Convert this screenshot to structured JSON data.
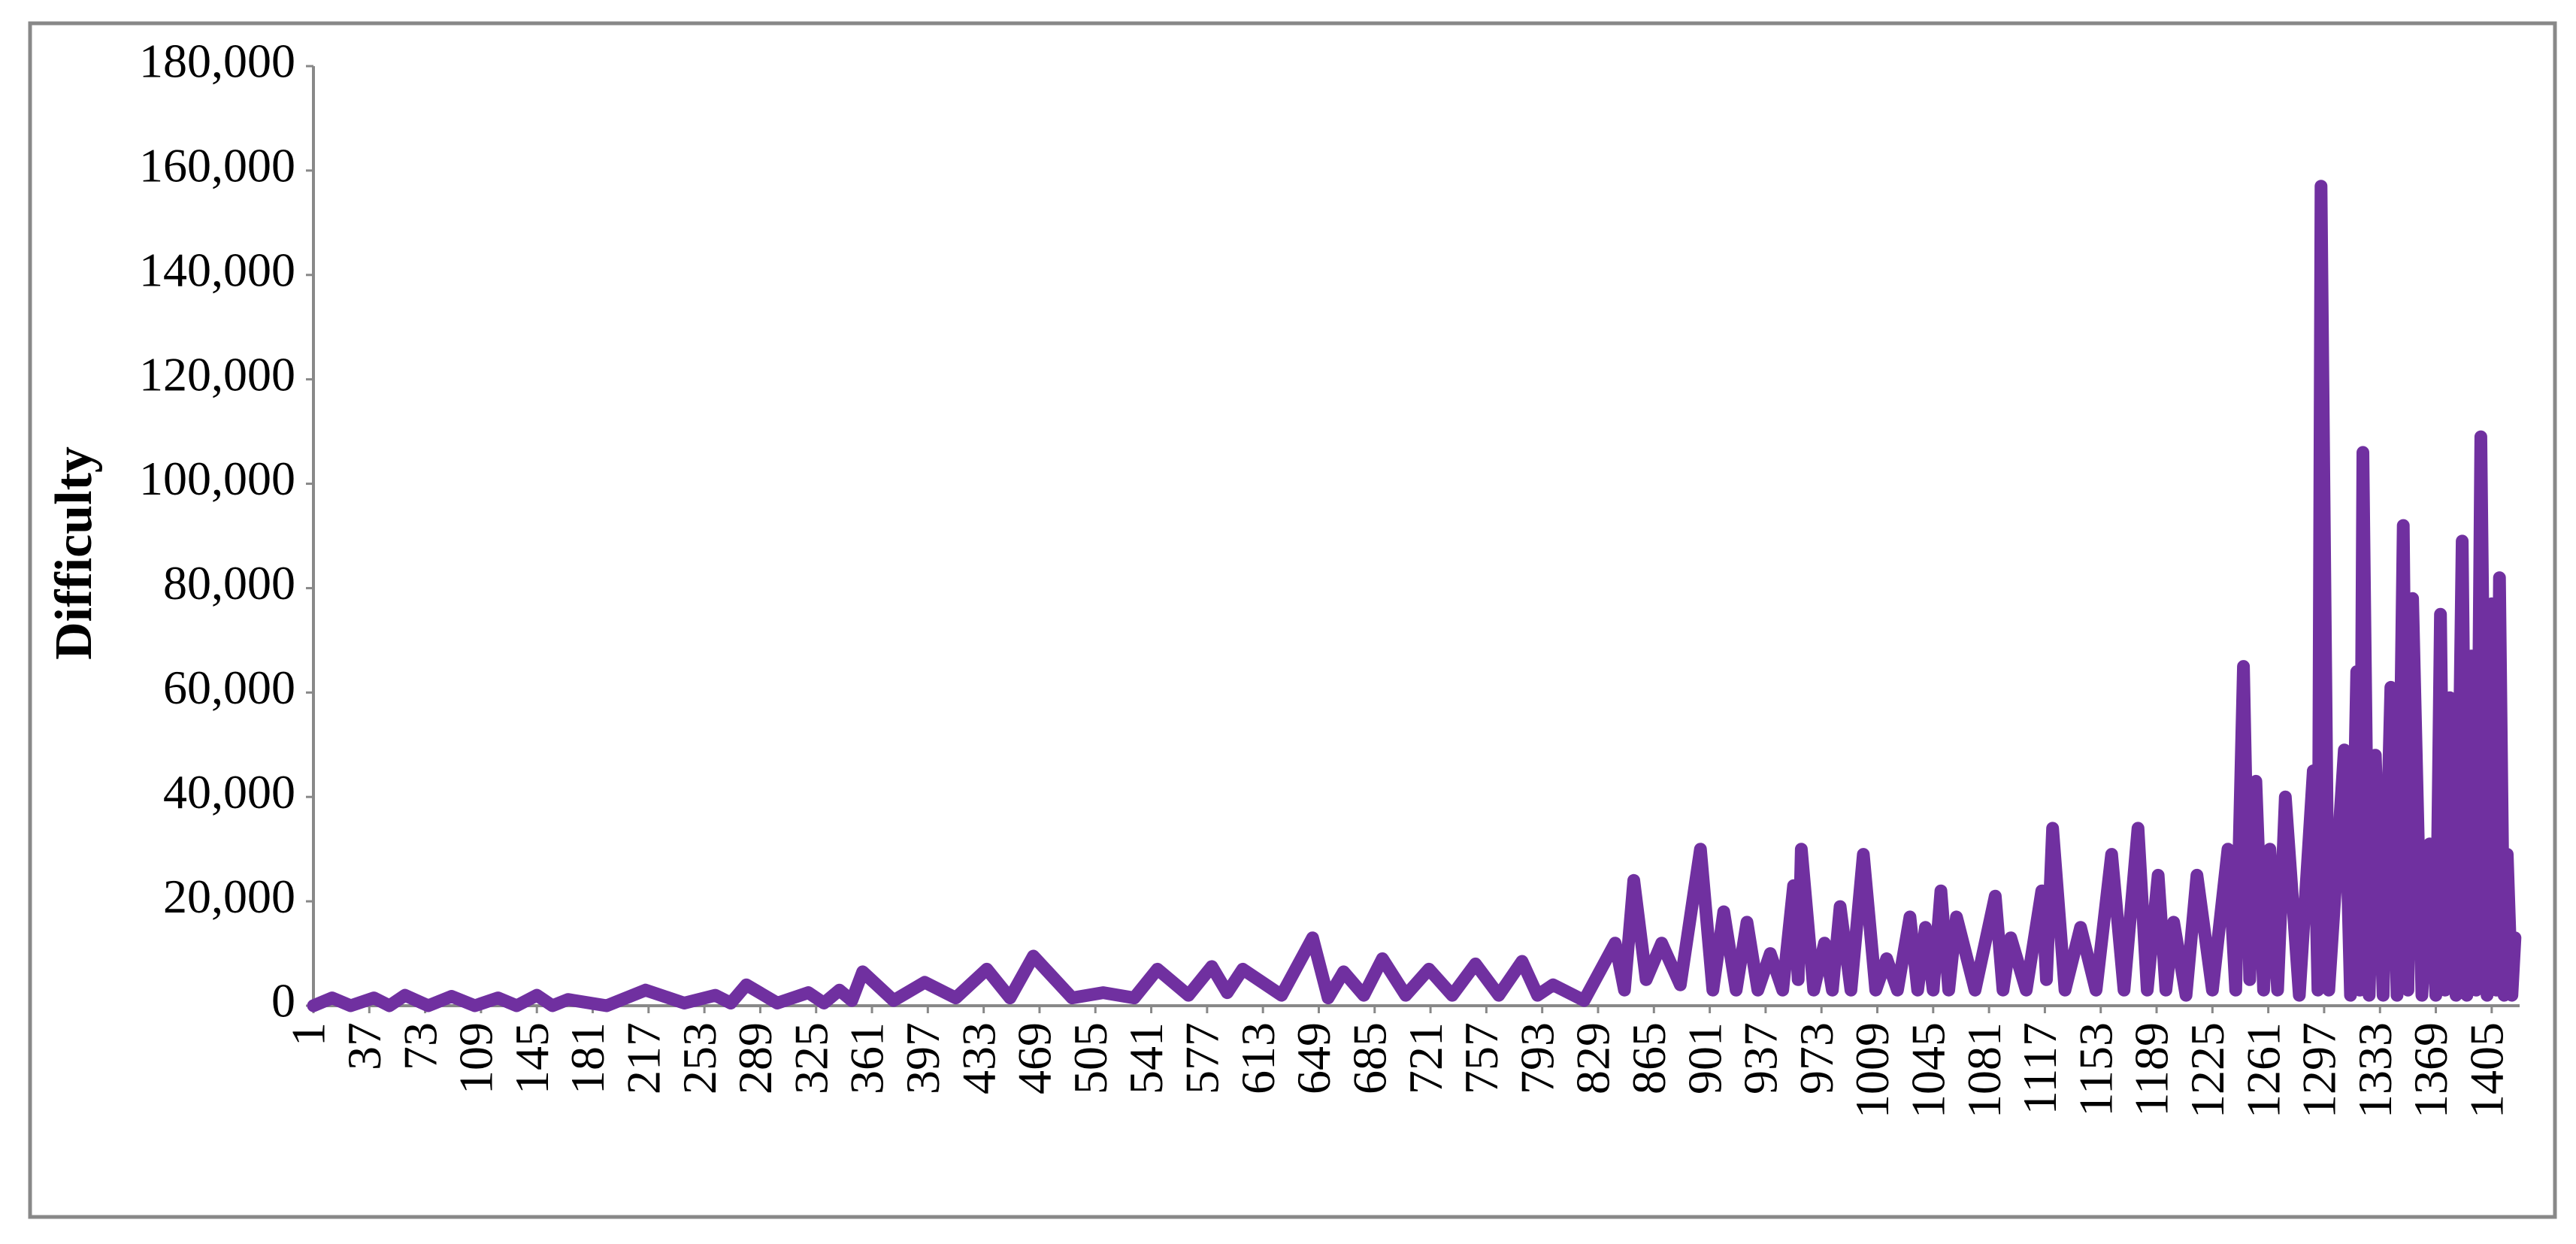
{
  "chart_data": {
    "type": "line",
    "y_label": "Difficulty",
    "color": "#7030a0",
    "x": [
      1,
      13,
      25,
      40,
      50,
      60,
      75,
      90,
      105,
      120,
      132,
      145,
      155,
      165,
      190,
      215,
      240,
      260,
      270,
      280,
      300,
      320,
      330,
      340,
      348,
      355,
      375,
      395,
      415,
      435,
      450,
      465,
      490,
      510,
      530,
      545,
      565,
      580,
      590,
      600,
      625,
      645,
      655,
      665,
      678,
      690,
      705,
      720,
      735,
      750,
      765,
      780,
      790,
      800,
      820,
      840,
      846,
      852,
      860,
      870,
      882,
      895,
      903,
      910,
      918,
      925,
      932,
      940,
      948,
      955,
      958,
      960,
      968,
      975,
      980,
      985,
      992,
      1000,
      1008,
      1015,
      1022,
      1030,
      1035,
      1040,
      1045,
      1050,
      1055,
      1060,
      1072,
      1085,
      1090,
      1095,
      1105,
      1115,
      1118,
      1122,
      1130,
      1140,
      1150,
      1160,
      1168,
      1177,
      1183,
      1190,
      1195,
      1200,
      1208,
      1215,
      1225,
      1235,
      1240,
      1245,
      1249,
      1253,
      1258,
      1262,
      1267,
      1272,
      1281,
      1290,
      1293,
      1295,
      1300,
      1310,
      1314,
      1318,
      1320,
      1322,
      1326,
      1330,
      1335,
      1340,
      1344,
      1348,
      1351,
      1354,
      1360,
      1365,
      1369,
      1372,
      1375,
      1378,
      1382,
      1386,
      1389,
      1392,
      1395,
      1398,
      1402,
      1405,
      1408,
      1410,
      1413,
      1415,
      1418,
      1420
    ],
    "values": [
      0,
      1500,
      0,
      1500,
      0,
      2000,
      0,
      1800,
      0,
      1500,
      0,
      2000,
      0,
      1200,
      0,
      3000,
      500,
      2000,
      500,
      4000,
      500,
      2500,
      500,
      3000,
      1000,
      6500,
      1000,
      4500,
      1500,
      7000,
      1500,
      9500,
      1500,
      2500,
      1500,
      7000,
      2000,
      7500,
      2500,
      7000,
      2000,
      13000,
      1500,
      6500,
      2000,
      9000,
      2000,
      7000,
      2000,
      8000,
      2000,
      8500,
      2000,
      4000,
      1000,
      12000,
      3000,
      24000,
      5000,
      12000,
      4000,
      30000,
      3000,
      18000,
      3000,
      16000,
      3000,
      10000,
      3000,
      23000,
      5000,
      30000,
      3000,
      12000,
      3000,
      19000,
      3000,
      29000,
      3000,
      9000,
      3000,
      17000,
      3000,
      15000,
      3000,
      22000,
      3000,
      17000,
      3000,
      21000,
      3000,
      13000,
      3000,
      22000,
      5000,
      34000,
      3000,
      15000,
      3000,
      29000,
      3000,
      34000,
      3000,
      25000,
      3000,
      16000,
      2000,
      25000,
      3000,
      30000,
      3000,
      65000,
      5000,
      43000,
      3000,
      30000,
      3000,
      40000,
      2000,
      45000,
      3000,
      157000,
      3000,
      49000,
      2000,
      64000,
      3000,
      106000,
      2000,
      48000,
      2000,
      61000,
      2000,
      92000,
      3000,
      78000,
      2000,
      31000,
      2000,
      75000,
      3000,
      59000,
      2000,
      89000,
      2000,
      67000,
      3000,
      109000,
      2000,
      77000,
      3000,
      82000,
      2000,
      29000,
      2000,
      13000
    ],
    "xlim": [
      1,
      1423
    ],
    "xticks": [
      1,
      37,
      73,
      109,
      145,
      181,
      217,
      253,
      289,
      325,
      361,
      397,
      433,
      469,
      505,
      541,
      577,
      613,
      649,
      685,
      721,
      757,
      793,
      829,
      865,
      901,
      937,
      973,
      1009,
      1045,
      1081,
      1117,
      1153,
      1189,
      1225,
      1261,
      1297,
      1333,
      1369,
      1405
    ],
    "ylim": [
      0,
      180000
    ],
    "yticks": [
      0,
      {
        "value": 20000,
        "label": "20,000"
      },
      {
        "value": 40000,
        "label": "40,000"
      },
      {
        "value": 60000,
        "label": "60,000"
      },
      {
        "value": 80000,
        "label": "80,000"
      },
      {
        "value": 100000,
        "label": "100,000"
      },
      {
        "value": 120000,
        "label": "120,000"
      },
      {
        "value": 140000,
        "label": "140,000"
      },
      {
        "value": 160000,
        "label": "160,000"
      },
      {
        "value": 180000,
        "label": "180,000"
      }
    ]
  }
}
